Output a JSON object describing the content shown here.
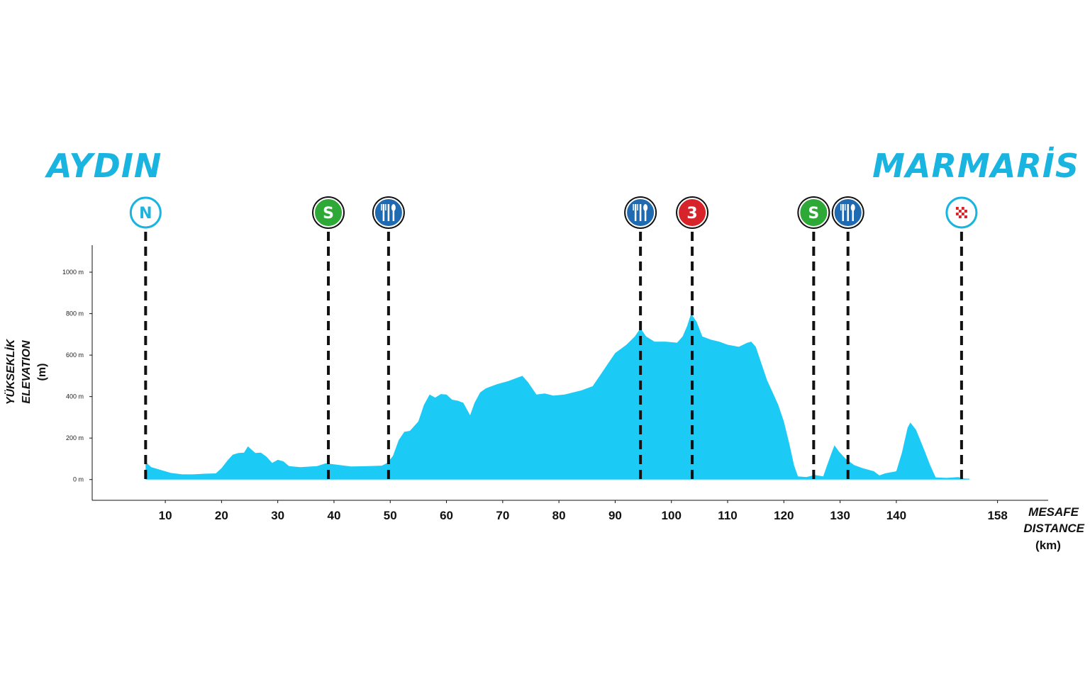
{
  "start_city": "AYDIN",
  "finish_city": "MARMARİS",
  "colors": {
    "profile": "#1bcbf5",
    "city": "#1ab4e0",
    "sprint": "#2ea836",
    "feed": "#1f6ab0",
    "climb": "#d7242a",
    "neutral_ring": "#1ab4e0",
    "finish_ring": "#1ab4e0"
  },
  "xaxis": {
    "title_1": "MESAFE",
    "title_2": "DISTANCE",
    "unit": "(km)"
  },
  "yaxis": {
    "title_1": "YÜKSEKLİK",
    "title_2": "ELEVATION",
    "unit": "(m)"
  },
  "chart_data": {
    "type": "area",
    "xlim": [
      -3,
      167
    ],
    "ylim": [
      -100,
      1130
    ],
    "x_ticks": [
      {
        "value": 10,
        "label": "10"
      },
      {
        "value": 20,
        "label": "20"
      },
      {
        "value": 30,
        "label": "30"
      },
      {
        "value": 40,
        "label": "40"
      },
      {
        "value": 50,
        "label": "50"
      },
      {
        "value": 60,
        "label": "60"
      },
      {
        "value": 70,
        "label": "70"
      },
      {
        "value": 80,
        "label": "80"
      },
      {
        "value": 90,
        "label": "90"
      },
      {
        "value": 100,
        "label": "100"
      },
      {
        "value": 110,
        "label": "110"
      },
      {
        "value": 120,
        "label": "120"
      },
      {
        "value": 130,
        "label": "130"
      },
      {
        "value": 140,
        "label": "140"
      },
      {
        "value": 158,
        "label": "158"
      }
    ],
    "y_ticks": [
      {
        "value": 0,
        "label": "0 m"
      },
      {
        "value": 200,
        "label": "200 m"
      },
      {
        "value": 400,
        "label": "400 m"
      },
      {
        "value": 600,
        "label": "600 m"
      },
      {
        "value": 800,
        "label": "800 m"
      },
      {
        "value": 1000,
        "label": "1000 m"
      }
    ],
    "profile": [
      [
        6.5,
        85
      ],
      [
        7.5,
        60
      ],
      [
        9,
        48
      ],
      [
        11,
        32
      ],
      [
        13,
        25
      ],
      [
        15,
        25
      ],
      [
        17,
        28
      ],
      [
        19,
        30
      ],
      [
        20,
        55
      ],
      [
        21,
        90
      ],
      [
        22,
        120
      ],
      [
        23,
        128
      ],
      [
        24,
        130
      ],
      [
        24.7,
        160
      ],
      [
        25.3,
        145
      ],
      [
        26,
        128
      ],
      [
        27,
        130
      ],
      [
        28,
        110
      ],
      [
        29,
        80
      ],
      [
        30,
        95
      ],
      [
        31,
        88
      ],
      [
        32,
        65
      ],
      [
        34,
        60
      ],
      [
        37,
        65
      ],
      [
        38.5,
        78
      ],
      [
        39.5,
        75
      ],
      [
        41,
        70
      ],
      [
        43,
        63
      ],
      [
        46,
        65
      ],
      [
        48.5,
        67
      ],
      [
        49.5,
        80
      ],
      [
        50.5,
        115
      ],
      [
        51.5,
        190
      ],
      [
        52.5,
        230
      ],
      [
        53.5,
        235
      ],
      [
        55,
        280
      ],
      [
        56,
        360
      ],
      [
        57,
        410
      ],
      [
        58,
        395
      ],
      [
        59,
        412
      ],
      [
        60,
        410
      ],
      [
        61,
        385
      ],
      [
        62,
        380
      ],
      [
        63,
        370
      ],
      [
        64.2,
        310
      ],
      [
        65,
        370
      ],
      [
        66,
        420
      ],
      [
        67,
        440
      ],
      [
        69,
        460
      ],
      [
        71,
        475
      ],
      [
        72.5,
        490
      ],
      [
        73.5,
        500
      ],
      [
        74.5,
        470
      ],
      [
        76,
        410
      ],
      [
        77.5,
        415
      ],
      [
        79,
        405
      ],
      [
        81,
        410
      ],
      [
        84,
        430
      ],
      [
        86,
        450
      ],
      [
        88,
        530
      ],
      [
        90,
        610
      ],
      [
        92,
        650
      ],
      [
        93.5,
        690
      ],
      [
        94.5,
        730
      ],
      [
        95.5,
        690
      ],
      [
        97,
        665
      ],
      [
        99,
        665
      ],
      [
        101,
        660
      ],
      [
        102,
        690
      ],
      [
        102.8,
        740
      ],
      [
        103.5,
        800
      ],
      [
        104.5,
        760
      ],
      [
        105.5,
        690
      ],
      [
        107,
        675
      ],
      [
        108.5,
        665
      ],
      [
        110,
        650
      ],
      [
        112,
        640
      ],
      [
        113.5,
        660
      ],
      [
        114.2,
        665
      ],
      [
        115,
        640
      ],
      [
        116,
        560
      ],
      [
        117,
        480
      ],
      [
        118,
        420
      ],
      [
        119,
        360
      ],
      [
        120,
        280
      ],
      [
        121,
        170
      ],
      [
        121.8,
        70
      ],
      [
        122.5,
        15
      ],
      [
        124,
        12
      ],
      [
        125.5,
        22
      ],
      [
        127,
        15
      ],
      [
        127.7,
        70
      ],
      [
        128.5,
        130
      ],
      [
        129,
        165
      ],
      [
        129.8,
        135
      ],
      [
        131,
        100
      ],
      [
        132.5,
        70
      ],
      [
        134,
        55
      ],
      [
        136,
        40
      ],
      [
        137,
        20
      ],
      [
        138,
        30
      ],
      [
        140,
        40
      ],
      [
        141,
        130
      ],
      [
        142,
        250
      ],
      [
        142.5,
        275
      ],
      [
        143.5,
        240
      ],
      [
        145,
        140
      ],
      [
        146,
        70
      ],
      [
        147,
        10
      ],
      [
        149,
        8
      ],
      [
        151,
        12
      ],
      [
        152,
        5
      ],
      [
        153,
        4
      ]
    ],
    "markers": [
      {
        "km": 6.5,
        "type": "neutral",
        "symbol": "N"
      },
      {
        "km": 39,
        "type": "sprint",
        "symbol": "S"
      },
      {
        "km": 49.7,
        "type": "feed",
        "symbol": ""
      },
      {
        "km": 94.5,
        "type": "feed",
        "symbol": ""
      },
      {
        "km": 103.7,
        "type": "climb",
        "symbol": "3"
      },
      {
        "km": 125.3,
        "type": "sprint",
        "symbol": "S"
      },
      {
        "km": 131.4,
        "type": "feed",
        "symbol": ""
      },
      {
        "km": 151.6,
        "type": "finish",
        "symbol": ""
      }
    ]
  }
}
